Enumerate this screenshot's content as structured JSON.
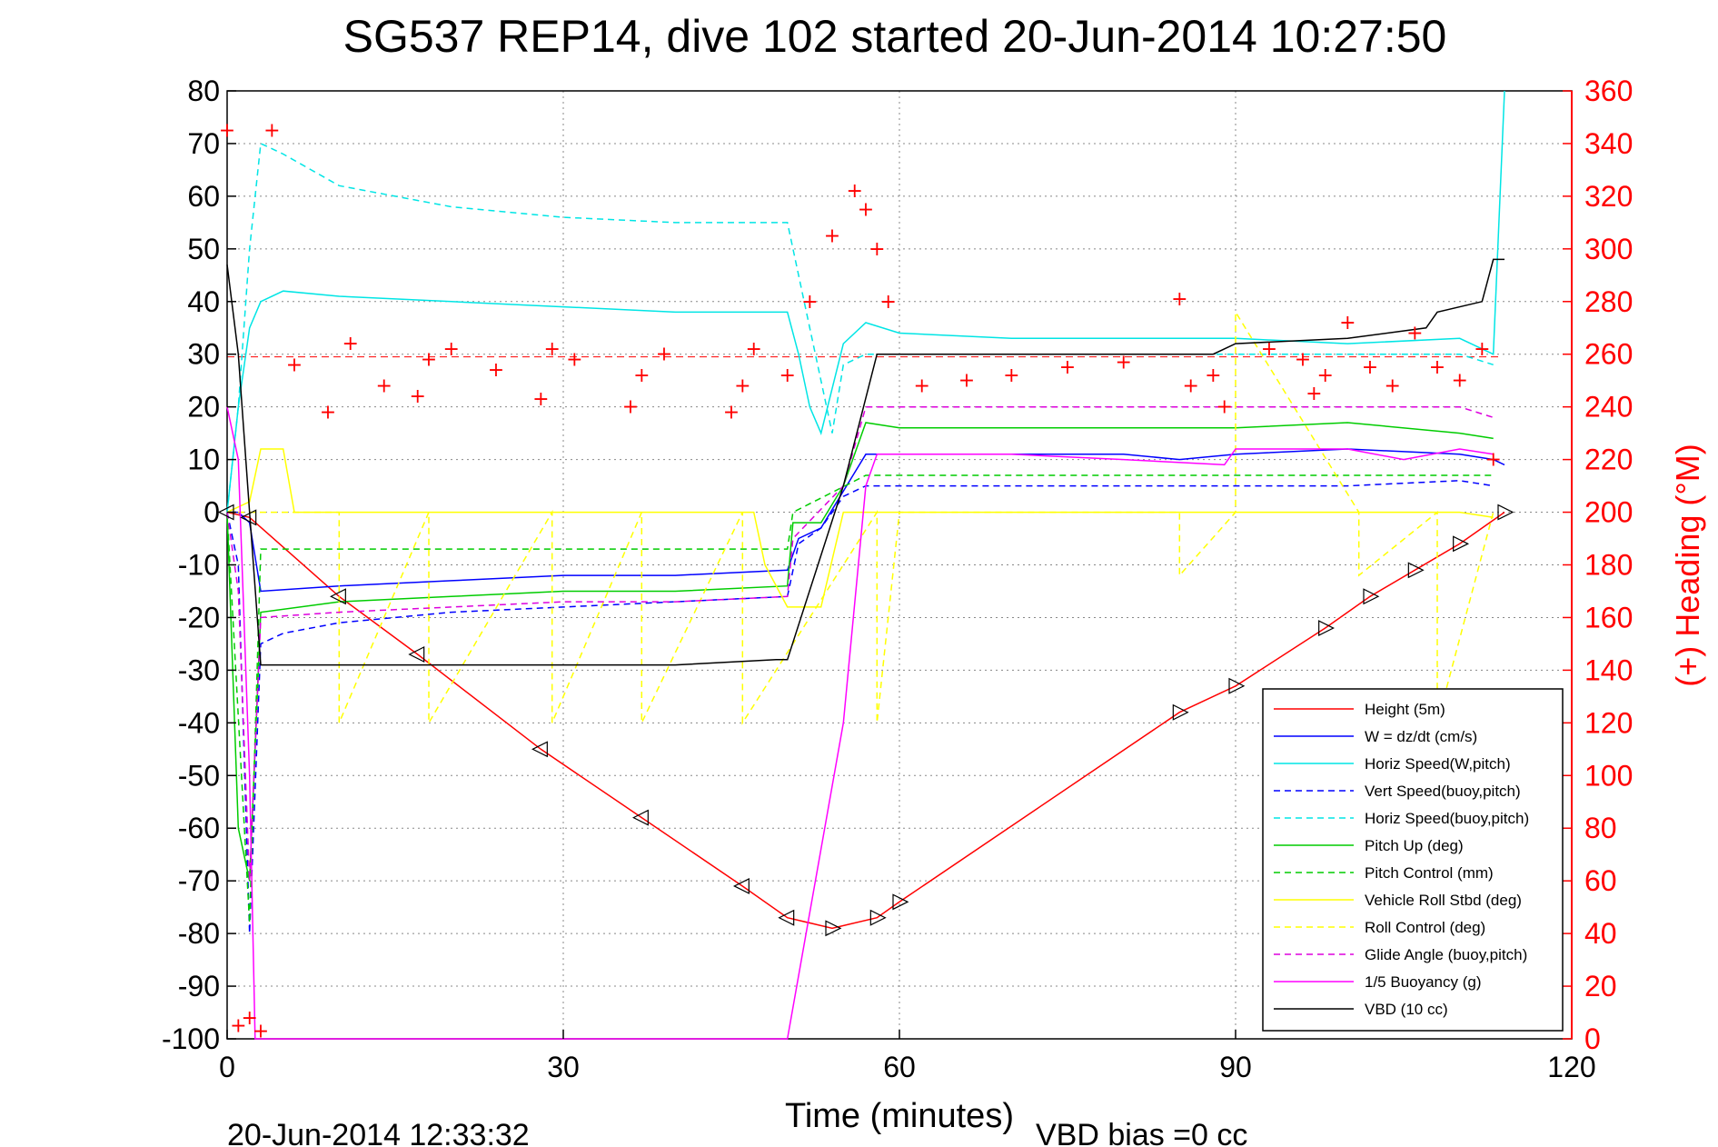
{
  "chart_data": {
    "type": "line",
    "title": "SG537 REP14, dive 102 started 20-Jun-2014 10:27:50",
    "xlabel": "Time (minutes)",
    "ylabel": "",
    "y2label": "(+) Heading (°M)",
    "xlim": [
      0,
      120
    ],
    "ylim": [
      -100,
      80
    ],
    "y2lim": [
      0,
      360
    ],
    "x_ticks": [
      "0",
      "30",
      "60",
      "90",
      "120"
    ],
    "y_ticks": [
      "80",
      "70",
      "60",
      "50",
      "40",
      "30",
      "20",
      "10",
      "0",
      "-10",
      "-20",
      "-30",
      "-40",
      "-50",
      "-60",
      "-70",
      "-80",
      "-90",
      "-100"
    ],
    "y2_ticks": [
      "360",
      "340",
      "320",
      "300",
      "280",
      "260",
      "240",
      "220",
      "200",
      "180",
      "160",
      "140",
      "120",
      "100",
      "80",
      "60",
      "40",
      "20",
      "0"
    ],
    "grid": true,
    "legend_position": "bottom-right",
    "footer_left": "20-Jun-2014 12:33:32",
    "footer_right": "VBD bias =0 cc",
    "heading_reference": 259,
    "series": [
      {
        "name": "Height (5m)",
        "color": "#ff0000",
        "style": "solid",
        "axis": "left",
        "x": [
          0,
          2,
          10,
          17,
          28,
          37,
          46,
          50,
          54,
          58,
          60,
          85,
          90,
          98,
          102,
          106,
          110,
          114
        ],
        "y": [
          0,
          -1,
          -16,
          -27,
          -45,
          -58,
          -71,
          -77,
          -79,
          -77,
          -74,
          -38,
          -33,
          -22,
          -16,
          -11,
          -6,
          0
        ]
      },
      {
        "name": "W = dz/dt (cm/s)",
        "color": "#0000ff",
        "style": "solid",
        "axis": "left",
        "x": [
          0,
          1,
          2,
          3,
          10,
          20,
          30,
          40,
          50,
          51,
          53,
          55,
          57,
          60,
          70,
          80,
          85,
          90,
          100,
          110,
          113,
          114
        ],
        "y": [
          0,
          0,
          -2,
          -15,
          -14,
          -13,
          -12,
          -12,
          -11,
          -5,
          -3,
          4,
          11,
          11,
          11,
          11,
          10,
          11,
          12,
          11,
          10,
          9
        ]
      },
      {
        "name": "Horiz Speed(W,pitch)",
        "color": "#00e5e5",
        "style": "solid",
        "axis": "left",
        "x": [
          0,
          1,
          2,
          3,
          5,
          10,
          20,
          30,
          40,
          50,
          51,
          52,
          53,
          55,
          57,
          60,
          70,
          80,
          90,
          100,
          110,
          113,
          114
        ],
        "y": [
          0,
          20,
          35,
          40,
          42,
          41,
          40,
          39,
          38,
          38,
          30,
          20,
          15,
          32,
          36,
          34,
          33,
          33,
          33,
          32,
          33,
          30,
          80
        ]
      },
      {
        "name": "Vert Speed(buoy,pitch)",
        "color": "#0000ff",
        "style": "dashed",
        "axis": "left",
        "x": [
          0,
          1,
          2,
          3,
          5,
          10,
          20,
          30,
          40,
          50,
          51,
          53,
          55,
          57,
          60,
          70,
          80,
          90,
          100,
          110,
          113
        ],
        "y": [
          0,
          -10,
          -80,
          -25,
          -23,
          -21,
          -19,
          -18,
          -17,
          -16,
          -6,
          -3,
          3,
          5,
          5,
          5,
          5,
          5,
          5,
          6,
          5
        ]
      },
      {
        "name": "Horiz Speed(buoy,pitch)",
        "color": "#00e5e5",
        "style": "dashed",
        "axis": "left",
        "x": [
          0,
          1,
          2,
          3,
          5,
          10,
          20,
          30,
          40,
          49,
          50,
          52,
          54,
          55,
          57,
          60,
          70,
          80,
          90,
          100,
          110,
          113
        ],
        "y": [
          0,
          20,
          50,
          70,
          68,
          62,
          58,
          56,
          55,
          55,
          55,
          35,
          15,
          28,
          30,
          30,
          30,
          30,
          30,
          30,
          30,
          28
        ]
      },
      {
        "name": "Pitch Up (deg)",
        "color": "#00cc00",
        "style": "solid",
        "axis": "left",
        "x": [
          0,
          1,
          2,
          3,
          10,
          20,
          30,
          40,
          50,
          50.5,
          53,
          55,
          57,
          60,
          70,
          80,
          90,
          100,
          110,
          113
        ],
        "y": [
          0,
          -60,
          -70,
          -19,
          -17,
          -16,
          -15,
          -15,
          -14,
          -2,
          -2,
          5,
          17,
          16,
          16,
          16,
          16,
          17,
          15,
          14
        ]
      },
      {
        "name": "Pitch Control (mm)",
        "color": "#00cc00",
        "style": "dashed",
        "axis": "left",
        "x": [
          0,
          2,
          3,
          50,
          50.5,
          57,
          113
        ],
        "y": [
          0,
          -78,
          -7,
          -7,
          0,
          7,
          7
        ]
      },
      {
        "name": "Vehicle Roll Stbd (deg)",
        "color": "#ffff00",
        "style": "solid",
        "axis": "left",
        "x": [
          0,
          2,
          3,
          5,
          6,
          10,
          20,
          30,
          40,
          47,
          48,
          50,
          53,
          55,
          57,
          58,
          60,
          70,
          85,
          87,
          89,
          90,
          97,
          100,
          105,
          110,
          113
        ],
        "y": [
          0,
          2,
          12,
          12,
          0,
          0,
          0,
          0,
          0,
          0,
          -10,
          -18,
          -18,
          0,
          0,
          0,
          0,
          0,
          0,
          0,
          0,
          0,
          0,
          0,
          0,
          0,
          -1
        ]
      },
      {
        "name": "Roll Control (deg)",
        "color": "#ffff00",
        "style": "dashed",
        "axis": "left",
        "x": [
          0,
          10,
          10,
          18,
          18,
          29,
          29,
          37,
          37,
          46,
          46,
          58,
          58,
          60,
          85,
          85,
          90,
          90,
          101,
          101,
          108,
          108,
          113
        ],
        "y": [
          0,
          0,
          -40,
          0,
          -40,
          0,
          -40,
          0,
          -40,
          0,
          -40,
          0,
          -40,
          0,
          0,
          -12,
          0,
          38,
          0,
          -12,
          0,
          -40,
          0
        ]
      },
      {
        "name": "Glide Angle (buoy,pitch)",
        "color": "#dd00dd",
        "style": "dashed",
        "axis": "left",
        "x": [
          0,
          1,
          2,
          3,
          10,
          20,
          30,
          40,
          50,
          50.5,
          55,
          57,
          60,
          70,
          80,
          90,
          100,
          110,
          113
        ],
        "y": [
          0,
          -15,
          -70,
          -20,
          -19,
          -18,
          -17,
          -17,
          -16,
          -5,
          5,
          20,
          20,
          20,
          20,
          20,
          20,
          20,
          18
        ]
      },
      {
        "name": "1/5 Buoyancy (g)",
        "color": "#ff00ff",
        "style": "solid",
        "axis": "left",
        "x": [
          0,
          1,
          2,
          2.5,
          50,
          55,
          57,
          58,
          60,
          70,
          80,
          89,
          90,
          100,
          105,
          110,
          113
        ],
        "y": [
          20,
          10,
          -50,
          -100,
          -100,
          -40,
          5,
          11,
          11,
          11,
          10,
          9,
          12,
          12,
          10,
          12,
          11
        ]
      },
      {
        "name": "VBD (10 cc)",
        "color": "#000000",
        "style": "solid",
        "axis": "left",
        "x": [
          0,
          1,
          2,
          3,
          10,
          20,
          30,
          40,
          49,
          50,
          55,
          58,
          60,
          70,
          85,
          88,
          90,
          100,
          107,
          108,
          112,
          113,
          114
        ],
        "y": [
          47,
          30,
          0,
          -29,
          -29,
          -29,
          -29,
          -29,
          -28,
          -28,
          5,
          30,
          30,
          30,
          30,
          30,
          32,
          33,
          35,
          38,
          40,
          48,
          48
        ]
      },
      {
        "name": "(+) Heading",
        "color": "#ff0000",
        "style": "markers",
        "axis": "right",
        "x": [
          0,
          1,
          2,
          3,
          4,
          6,
          9,
          11,
          14,
          17,
          18,
          20,
          24,
          28,
          29,
          31,
          36,
          37,
          39,
          45,
          46,
          47,
          50,
          52,
          54,
          56,
          57,
          58,
          59,
          62,
          66,
          70,
          75,
          80,
          85,
          86,
          88,
          89,
          93,
          96,
          97,
          98,
          100,
          102,
          104,
          106,
          108,
          110,
          112,
          113
        ],
        "y": [
          345,
          5,
          8,
          3,
          345,
          256,
          238,
          264,
          248,
          244,
          258,
          262,
          254,
          243,
          262,
          258,
          240,
          252,
          260,
          238,
          248,
          262,
          252,
          280,
          305,
          322,
          315,
          300,
          280,
          248,
          250,
          252,
          255,
          257,
          281,
          248,
          252,
          240,
          262,
          258,
          245,
          252,
          272,
          255,
          248,
          268,
          255,
          250,
          262,
          220
        ],
        "x_unused": null
      }
    ]
  }
}
